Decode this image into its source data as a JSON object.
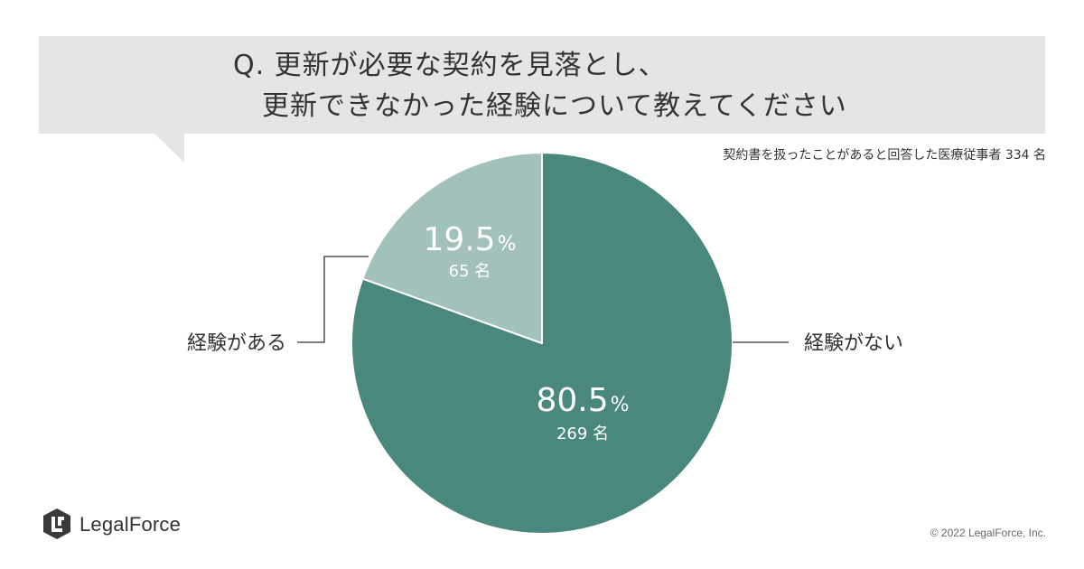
{
  "question": {
    "line1": "Q. 更新が必要な契約を見落とし、",
    "line2": "更新できなかった経験について教えてください"
  },
  "respondents_note": "契約書を扱ったことがあると回答した医療従事者 334 名",
  "chart_data": {
    "type": "pie",
    "slices": [
      {
        "label": "経験がない",
        "percent": 80.5,
        "percent_text": "80.5",
        "count_text": "269 名",
        "color": "#4a877c"
      },
      {
        "label": "経験がある",
        "percent": 19.5,
        "percent_text": "19.5",
        "count_text": "65 名",
        "color": "#a3c1bb"
      }
    ],
    "percent_sign": "%"
  },
  "brand": {
    "name": "LegalForce"
  },
  "copyright": "© 2022 LegalForce, Inc."
}
